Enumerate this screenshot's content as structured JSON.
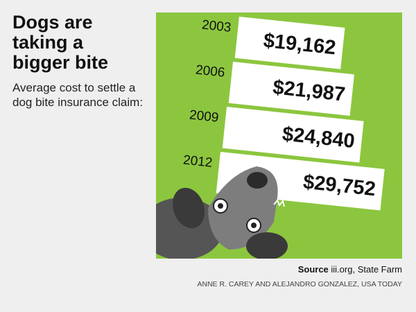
{
  "chart_data": {
    "type": "bar",
    "title": "Dogs are taking a bigger bite",
    "subtitle": "Average cost to settle a dog bite insurance claim:",
    "categories": [
      "2003",
      "2006",
      "2009",
      "2012"
    ],
    "values": [
      19162,
      21987,
      24840,
      29752
    ],
    "value_labels": [
      "$19,162",
      "$21,987",
      "$24,840",
      "$29,752"
    ],
    "color": "#ffffff",
    "background": "#8cc63f",
    "source_label": "Source",
    "source": "iii.org, State Farm",
    "credit": "ANNE R. CAREY AND ALEJANDRO GONZALEZ, USA TODAY"
  }
}
